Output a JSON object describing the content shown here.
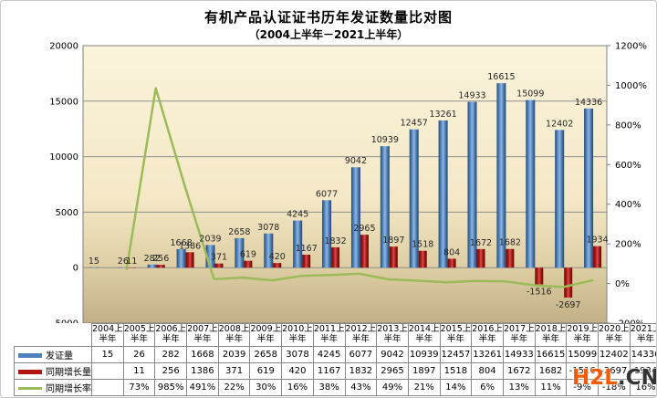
{
  "title": "有机产品认证证书历年发证数量比对图",
  "subtitle": "（2004上半年－2021上半年）",
  "watermark": {
    "part1": "H2L",
    "part2": ".CN",
    "color1": "#F25B05",
    "color2": "#333333"
  },
  "chart_data": {
    "type": "combo-bar-line",
    "categories": [
      "2004上半年",
      "2005上半年",
      "2006上半年",
      "2007上半年",
      "2008上半年",
      "2009上半年",
      "2010上半年",
      "2011上半年",
      "2012上半年",
      "2013上半年",
      "2014上半年",
      "2015上半年",
      "2016上半年",
      "2017上半年",
      "2018上半年",
      "2019上半年",
      "2020上半年",
      "2021上半年"
    ],
    "series": [
      {
        "name": "发证量",
        "type": "bar",
        "axis": "left",
        "color": "#4F81BD",
        "values": [
          15,
          26,
          282,
          1668,
          2039,
          2658,
          3078,
          4245,
          6077,
          9042,
          10939,
          12457,
          13261,
          14933,
          16615,
          15099,
          12402,
          14336
        ]
      },
      {
        "name": "同期增长量",
        "type": "bar",
        "axis": "left",
        "color": "#B01511",
        "values": [
          null,
          11,
          256,
          1386,
          371,
          619,
          420,
          1167,
          1832,
          2965,
          1897,
          1518,
          804,
          1672,
          1682,
          -1516,
          -2697,
          1934
        ]
      },
      {
        "name": "同期增长率",
        "type": "line",
        "axis": "right",
        "color": "#9BBB59",
        "unit": "%",
        "values": [
          null,
          73,
          985,
          491,
          22,
          30,
          16,
          38,
          43,
          49,
          21,
          14,
          6,
          13,
          11,
          -9,
          -18,
          16
        ]
      }
    ],
    "left_axis": {
      "min": -5000,
      "max": 20000,
      "ticks": [
        20000,
        15000,
        10000,
        5000,
        0,
        -5000
      ]
    },
    "right_axis": {
      "min": -200,
      "max": 1200,
      "ticks": [
        1200,
        1000,
        800,
        600,
        400,
        200,
        0,
        -200
      ],
      "unit": "%"
    },
    "grid": true,
    "legend_position": "table-left",
    "label_color": "#262626",
    "grid_color": "#8f8f8f"
  }
}
